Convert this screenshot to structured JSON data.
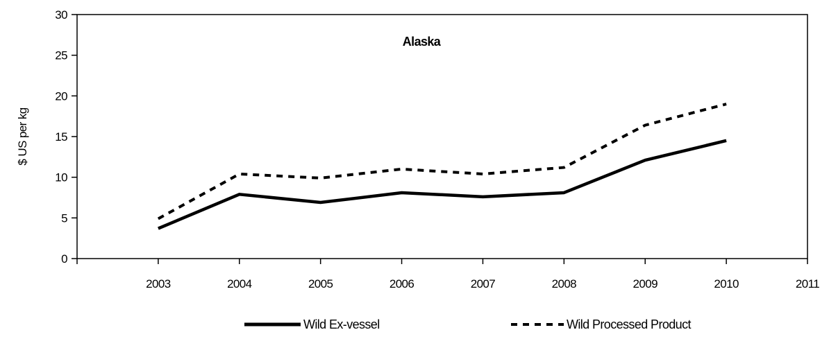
{
  "chart_data": {
    "type": "line",
    "title": "Alaska",
    "xlabel": "",
    "ylabel": "$ US per kg",
    "x": [
      2003,
      2004,
      2005,
      2006,
      2007,
      2008,
      2009,
      2010
    ],
    "x_ticks": [
      "2003",
      "2004",
      "2005",
      "2006",
      "2007",
      "2008",
      "2009",
      "2010",
      "2011"
    ],
    "xlim": [
      2002,
      2011
    ],
    "ylim": [
      0,
      30
    ],
    "y_ticks": [
      "0",
      "5",
      "10",
      "15",
      "20",
      "25",
      "30"
    ],
    "grid": false,
    "legend_position": "bottom",
    "series": [
      {
        "name": "Wild Ex-vessel",
        "style": "solid",
        "color": "#000000",
        "values": [
          3.7,
          7.9,
          6.9,
          8.1,
          7.6,
          8.1,
          12.1,
          14.5
        ]
      },
      {
        "name": "Wild Processed Product",
        "style": "dashed",
        "color": "#000000",
        "values": [
          4.9,
          10.4,
          9.9,
          11.0,
          10.4,
          11.2,
          16.4,
          19.0
        ]
      }
    ]
  }
}
